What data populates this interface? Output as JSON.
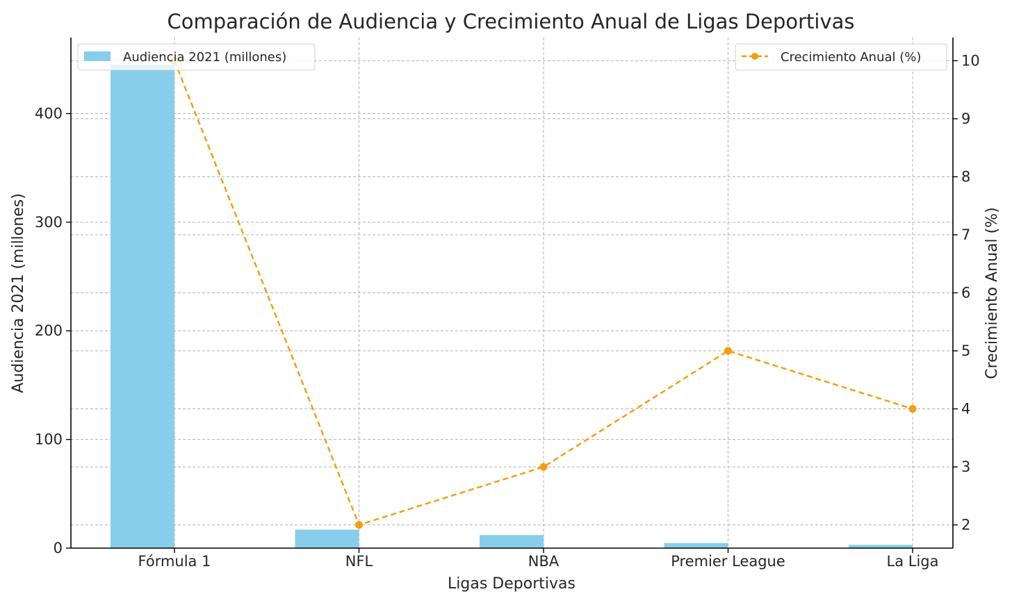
{
  "chart_data": {
    "type": "bar+line",
    "title": "Comparación de Audiencia y Crecimiento Anual de Ligas Deportivas",
    "xlabel": "Ligas Deportivas",
    "ylabel_left": "Audiencia 2021 (millones)",
    "ylabel_right": "Crecimiento Anual (%)",
    "categories": [
      "Fórmula 1",
      "NFL",
      "NBA",
      "Premier League",
      "La Liga"
    ],
    "series": [
      {
        "name": "Audiencia 2021 (millones)",
        "type": "bar",
        "axis": "left",
        "color": "#87ceeb",
        "values": [
          445,
          17,
          12,
          4.7,
          3
        ]
      },
      {
        "name": "Crecimiento Anual (%)",
        "type": "line",
        "axis": "right",
        "color": "#f59e0b",
        "line_style": "dashed",
        "marker": "circle",
        "values": [
          10,
          2,
          3,
          5,
          4
        ]
      }
    ],
    "ylim_left": [
      0,
      470
    ],
    "yticks_left": [
      0,
      100,
      200,
      300,
      400
    ],
    "ylim_right": [
      1.6,
      10.4
    ],
    "yticks_right": [
      2,
      3,
      4,
      5,
      6,
      7,
      8,
      9,
      10
    ],
    "grid": true,
    "legend_bar_position": "top-left",
    "legend_line_position": "top-right"
  }
}
